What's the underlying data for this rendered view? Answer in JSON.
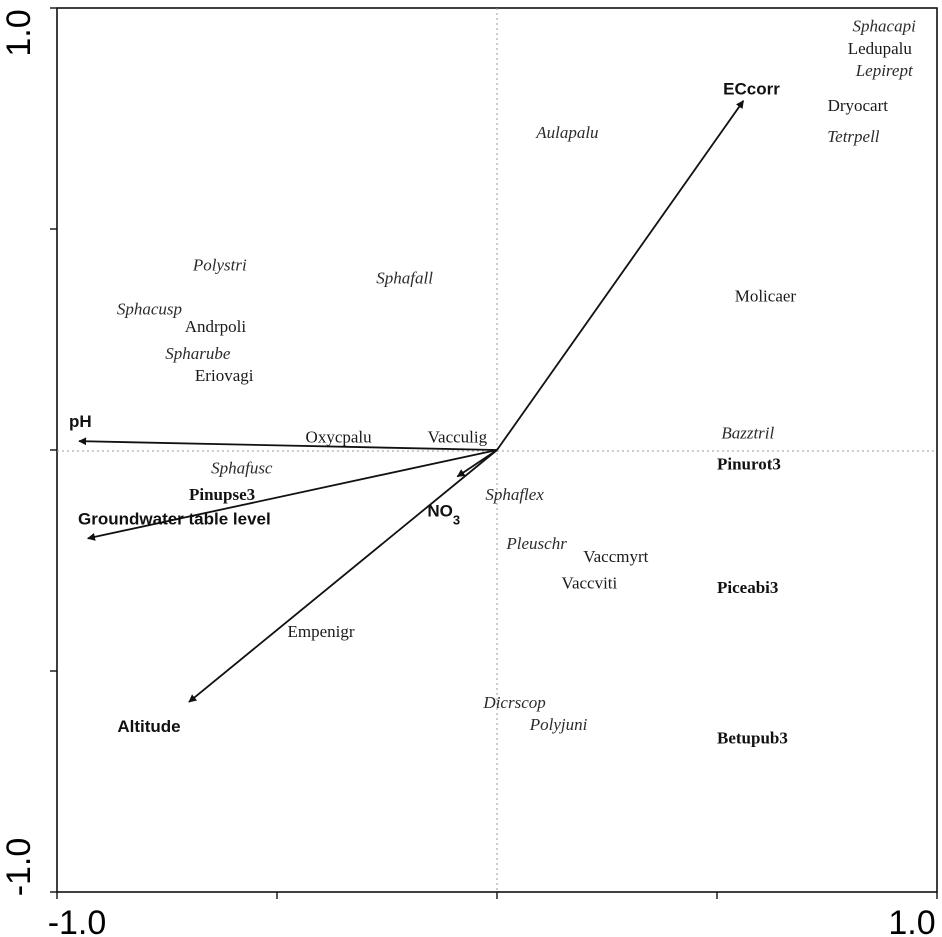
{
  "chart_data": {
    "type": "scatter",
    "title": "",
    "xlabel": "",
    "ylabel": "",
    "xlim": [
      -1.0,
      1.0
    ],
    "ylim": [
      -1.0,
      1.0
    ],
    "x_tick_labels": [
      {
        "value": -1.0,
        "label": "-1.0"
      },
      {
        "value": 1.0,
        "label": "1.0"
      }
    ],
    "y_tick_labels": [
      {
        "value": 1.0,
        "label": "1.0"
      },
      {
        "value": -1.0,
        "label": "-1.0"
      }
    ],
    "x_minor_ticks": [
      -0.5,
      0.0,
      0.5
    ],
    "y_minor_ticks": [
      0.5,
      0.0,
      -0.5
    ],
    "grid": false,
    "reference_lines": [
      0.0
    ],
    "arrows": [
      {
        "name": "ECcorr",
        "x": 0.56,
        "y": 0.79
      },
      {
        "name": "pH",
        "x": -0.95,
        "y": 0.02
      },
      {
        "name": "Groundwater table level",
        "x": -0.93,
        "y": -0.2
      },
      {
        "name": "Altitude",
        "x": -0.7,
        "y": -0.57
      },
      {
        "name": "NO",
        "subscript": "3",
        "x": -0.09,
        "y": -0.06
      }
    ],
    "species": [
      {
        "name": "Sphacapi",
        "x": 0.88,
        "y": 0.96,
        "italic": true
      },
      {
        "name": "Ledupalu",
        "x": 0.87,
        "y": 0.91,
        "italic": false
      },
      {
        "name": "Lepirept",
        "x": 0.88,
        "y": 0.86,
        "italic": true
      },
      {
        "name": "Dryocart",
        "x": 0.82,
        "y": 0.78,
        "italic": false
      },
      {
        "name": "Tetrpell",
        "x": 0.81,
        "y": 0.71,
        "italic": true
      },
      {
        "name": "Aulapalu",
        "x": 0.16,
        "y": 0.72,
        "italic": true
      },
      {
        "name": "Polystri",
        "x": -0.63,
        "y": 0.42,
        "italic": true
      },
      {
        "name": "Sphafall",
        "x": -0.21,
        "y": 0.39,
        "italic": true
      },
      {
        "name": "Molicaer",
        "x": 0.61,
        "y": 0.35,
        "italic": false
      },
      {
        "name": "Sphacusp",
        "x": -0.79,
        "y": 0.32,
        "italic": true
      },
      {
        "name": "Andrpoli",
        "x": -0.64,
        "y": 0.28,
        "italic": false
      },
      {
        "name": "Spharube",
        "x": -0.68,
        "y": 0.22,
        "italic": true
      },
      {
        "name": "Eriovagi",
        "x": -0.62,
        "y": 0.17,
        "italic": false
      },
      {
        "name": "Oxycpalu",
        "x": -0.36,
        "y": 0.03,
        "italic": false
      },
      {
        "name": "Vacculig",
        "x": -0.09,
        "y": 0.03,
        "italic": false
      },
      {
        "name": "Bazztril",
        "x": 0.57,
        "y": 0.04,
        "italic": true
      },
      {
        "name": "Sphafusc",
        "x": -0.58,
        "y": -0.04,
        "italic": true
      },
      {
        "name": "Sphaflex",
        "x": 0.04,
        "y": -0.1,
        "italic": true
      },
      {
        "name": "Pleuschr",
        "x": 0.09,
        "y": -0.21,
        "italic": true
      },
      {
        "name": "Vaccmyrt",
        "x": 0.27,
        "y": -0.24,
        "italic": false
      },
      {
        "name": "Vaccviti",
        "x": 0.21,
        "y": -0.3,
        "italic": false
      },
      {
        "name": "Empenigr",
        "x": -0.4,
        "y": -0.41,
        "italic": false
      },
      {
        "name": "Dicrscop",
        "x": 0.04,
        "y": -0.57,
        "italic": true
      },
      {
        "name": "Polyjuni",
        "x": 0.14,
        "y": -0.62,
        "italic": true
      }
    ],
    "sites": [
      {
        "name": "Pinurot3",
        "x": 0.5,
        "y": -0.03
      },
      {
        "name": "Pinupse3",
        "x": -0.7,
        "y": -0.1
      },
      {
        "name": "Piceabi3",
        "x": 0.5,
        "y": -0.31
      },
      {
        "name": "Betupub3",
        "x": 0.5,
        "y": -0.65
      }
    ]
  }
}
